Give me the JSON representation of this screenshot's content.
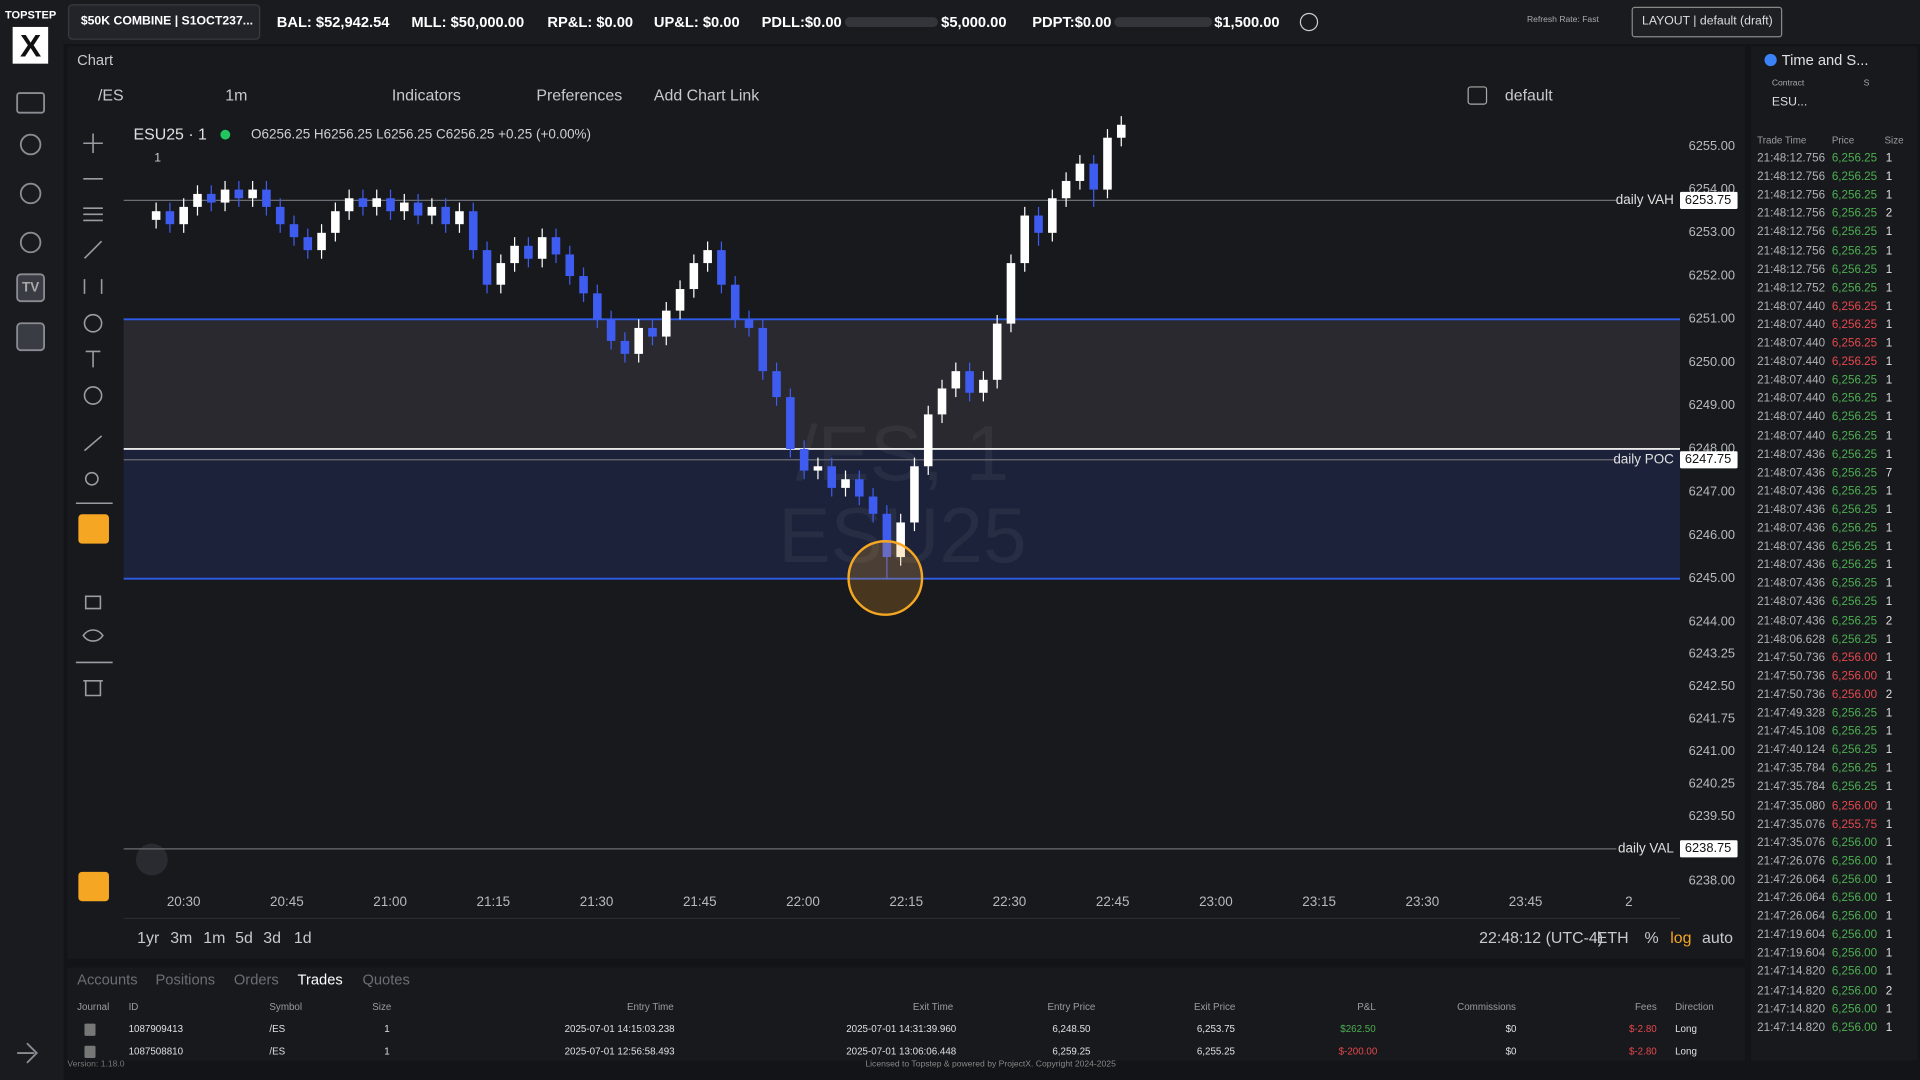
{
  "brand": "TOPSTEP",
  "logo": "X",
  "sidebar_badge": "TV",
  "topbar": {
    "account": "$50K COMBINE | S1OCT237...",
    "bal": "BAL: $52,942.54",
    "mll": "MLL: $50,000.00",
    "rpl": "RP&L: $0.00",
    "upl": "UP&L: $0.00",
    "pdll": "PDLL:$0.00",
    "pdll_limit": "$5,000.00",
    "pdpt": "PDPT:$0.00",
    "pdpt_limit": "$1,500.00",
    "refresh": "Refresh Rate: Fast",
    "layout": "LAYOUT | default (draft)"
  },
  "chart_tab": "Chart",
  "toolbar": {
    "symbol": "/ES",
    "interval": "1m",
    "indicators": "Indicators",
    "preferences": "Preferences",
    "add_link": "Add Chart Link",
    "template": "default"
  },
  "legend": {
    "name": "ESU25 · 1",
    "ohlc": "O6256.25 H6256.25 L6256.25 C6256.25 +0.25 (+0.00%)",
    "collapse": "1"
  },
  "watermark": [
    "/ES, 1",
    "ESU25"
  ],
  "chart": {
    "type": "candlestick",
    "up_color": "#ffffff",
    "down_color": "#3f5cf0",
    "ylim": [
      6237.85,
      6255.78
    ],
    "yticks": [
      {
        "value": 6255,
        "label": "6255.00"
      },
      {
        "value": 6254,
        "label": "6254.00"
      },
      {
        "value": 6253,
        "label": "6253.00"
      },
      {
        "value": 6252,
        "label": "6252.00"
      },
      {
        "value": 6251,
        "label": "6251.00"
      },
      {
        "value": 6250,
        "label": "6250.00"
      },
      {
        "value": 6249,
        "label": "6249.00"
      },
      {
        "value": 6248,
        "label": "6248.00"
      },
      {
        "value": 6247,
        "label": "6247.00"
      },
      {
        "value": 6246,
        "label": "6246.00"
      },
      {
        "value": 6245,
        "label": "6245.00"
      },
      {
        "value": 6244,
        "label": "6244.00"
      },
      {
        "value": 6243.25,
        "label": "6243.25"
      },
      {
        "value": 6242.5,
        "label": "6242.50"
      },
      {
        "value": 6241.75,
        "label": "6241.75"
      },
      {
        "value": 6241,
        "label": "6241.00"
      },
      {
        "value": 6240.25,
        "label": "6240.25"
      },
      {
        "value": 6239.5,
        "label": "6239.50"
      },
      {
        "value": 6238,
        "label": "6238.00"
      }
    ],
    "xticks": [
      "20:30",
      "20:45",
      "21:00",
      "21:15",
      "21:30",
      "21:45",
      "22:00",
      "22:15",
      "22:30",
      "22:45",
      "23:00",
      "23:15",
      "23:30",
      "23:45",
      "2"
    ],
    "zones": [
      {
        "from": 6251,
        "to": 6248,
        "color": "rgba(130,130,140,0.16)"
      },
      {
        "from": 6248,
        "to": 6245,
        "color": "rgba(45,70,160,0.22)"
      }
    ],
    "lines": [
      {
        "value": 6251,
        "color": "#2f5bea"
      },
      {
        "value": 6248,
        "color": "#e8e8e8"
      },
      {
        "value": 6245,
        "color": "#2f5bea"
      }
    ],
    "levels": [
      {
        "name": "daily VAH",
        "value": 6253.75,
        "label": "6253.75"
      },
      {
        "name": "daily POC",
        "value": 6247.75,
        "label": "6247.75"
      },
      {
        "name": "daily VAL",
        "value": 6238.75,
        "label": "6238.75"
      }
    ],
    "candles": [
      [
        6253.3,
        6253.7,
        6253.1,
        6253.5
      ],
      [
        6253.5,
        6253.7,
        6253.0,
        6253.2
      ],
      [
        6253.2,
        6253.8,
        6253.0,
        6253.6
      ],
      [
        6253.6,
        6254.1,
        6253.4,
        6253.9
      ],
      [
        6253.9,
        6254.1,
        6253.5,
        6253.7
      ],
      [
        6253.7,
        6254.2,
        6253.5,
        6254.0
      ],
      [
        6254.0,
        6254.2,
        6253.6,
        6253.8
      ],
      [
        6253.8,
        6254.2,
        6253.6,
        6254.0
      ],
      [
        6254.0,
        6254.2,
        6253.4,
        6253.6
      ],
      [
        6253.6,
        6253.8,
        6253.0,
        6253.2
      ],
      [
        6253.2,
        6253.4,
        6252.7,
        6252.9
      ],
      [
        6252.9,
        6253.1,
        6252.4,
        6252.6
      ],
      [
        6252.6,
        6253.2,
        6252.4,
        6253.0
      ],
      [
        6253.0,
        6253.7,
        6252.8,
        6253.5
      ],
      [
        6253.5,
        6254.0,
        6253.3,
        6253.8
      ],
      [
        6253.8,
        6254.0,
        6253.4,
        6253.6
      ],
      [
        6253.6,
        6254.0,
        6253.4,
        6253.8
      ],
      [
        6253.8,
        6254.0,
        6253.3,
        6253.5
      ],
      [
        6253.5,
        6253.9,
        6253.3,
        6253.7
      ],
      [
        6253.7,
        6253.9,
        6253.2,
        6253.4
      ],
      [
        6253.4,
        6253.8,
        6253.2,
        6253.6
      ],
      [
        6253.6,
        6253.8,
        6253.0,
        6253.2
      ],
      [
        6253.2,
        6253.7,
        6253.0,
        6253.5
      ],
      [
        6253.5,
        6253.7,
        6252.4,
        6252.6
      ],
      [
        6252.6,
        6252.8,
        6251.6,
        6251.8
      ],
      [
        6251.8,
        6252.5,
        6251.6,
        6252.3
      ],
      [
        6252.3,
        6252.9,
        6252.1,
        6252.7
      ],
      [
        6252.7,
        6252.9,
        6252.2,
        6252.4
      ],
      [
        6252.4,
        6253.1,
        6252.2,
        6252.9
      ],
      [
        6252.9,
        6253.1,
        6252.3,
        6252.5
      ],
      [
        6252.5,
        6252.7,
        6251.8,
        6252.0
      ],
      [
        6252.0,
        6252.2,
        6251.4,
        6251.6
      ],
      [
        6251.6,
        6251.8,
        6250.8,
        6251.0
      ],
      [
        6251.0,
        6251.2,
        6250.3,
        6250.5
      ],
      [
        6250.5,
        6250.7,
        6250.0,
        6250.2
      ],
      [
        6250.2,
        6251.0,
        6250.0,
        6250.8
      ],
      [
        6250.8,
        6251.0,
        6250.4,
        6250.6
      ],
      [
        6250.6,
        6251.4,
        6250.4,
        6251.2
      ],
      [
        6251.2,
        6251.9,
        6251.0,
        6251.7
      ],
      [
        6251.7,
        6252.5,
        6251.5,
        6252.3
      ],
      [
        6252.3,
        6252.8,
        6252.1,
        6252.6
      ],
      [
        6252.6,
        6252.8,
        6251.6,
        6251.8
      ],
      [
        6251.8,
        6252.0,
        6250.8,
        6251.0
      ],
      [
        6251.0,
        6251.2,
        6250.6,
        6250.8
      ],
      [
        6250.8,
        6251.0,
        6249.6,
        6249.8
      ],
      [
        6249.8,
        6250.0,
        6249.0,
        6249.2
      ],
      [
        6249.2,
        6249.4,
        6247.8,
        6248.0
      ],
      [
        6248.0,
        6248.2,
        6247.3,
        6247.5
      ],
      [
        6247.5,
        6247.8,
        6247.3,
        6247.6
      ],
      [
        6247.6,
        6247.8,
        6246.9,
        6247.1
      ],
      [
        6247.1,
        6247.5,
        6246.9,
        6247.3
      ],
      [
        6247.3,
        6247.5,
        6246.7,
        6246.9
      ],
      [
        6246.9,
        6247.1,
        6246.3,
        6246.5
      ],
      [
        6246.5,
        6246.7,
        6245.0,
        6245.5
      ],
      [
        6245.5,
        6246.5,
        6245.3,
        6246.3
      ],
      [
        6246.3,
        6247.8,
        6246.1,
        6247.6
      ],
      [
        6247.6,
        6249.0,
        6247.4,
        6248.8
      ],
      [
        6248.8,
        6249.6,
        6248.6,
        6249.4
      ],
      [
        6249.4,
        6250.0,
        6249.2,
        6249.8
      ],
      [
        6249.8,
        6250.0,
        6249.1,
        6249.3
      ],
      [
        6249.3,
        6249.8,
        6249.1,
        6249.6
      ],
      [
        6249.6,
        6251.1,
        6249.4,
        6250.9
      ],
      [
        6250.9,
        6252.5,
        6250.7,
        6252.3
      ],
      [
        6252.3,
        6253.6,
        6252.1,
        6253.4
      ],
      [
        6253.4,
        6253.6,
        6252.7,
        6253.0
      ],
      [
        6253.0,
        6254.0,
        6252.8,
        6253.8
      ],
      [
        6253.8,
        6254.4,
        6253.6,
        6254.2
      ],
      [
        6254.2,
        6254.8,
        6254.0,
        6254.6
      ],
      [
        6254.6,
        6254.8,
        6253.6,
        6254.0
      ],
      [
        6254.0,
        6255.4,
        6253.8,
        6255.2
      ],
      [
        6255.2,
        6255.7,
        6255.0,
        6255.5
      ]
    ]
  },
  "bottom_bar": {
    "ranges": [
      "1yr",
      "3m",
      "1m",
      "5d",
      "3d",
      "1d"
    ],
    "clock": "22:48:12 (UTC-4)",
    "session": "ETH",
    "percent": "%",
    "log": "log",
    "auto": "auto"
  },
  "panel": {
    "tabs": [
      "Accounts",
      "Positions",
      "Orders",
      "Trades",
      "Quotes"
    ],
    "active": 3,
    "columns": [
      "Journal",
      "ID",
      "Symbol",
      "Size",
      "Entry Time",
      "Exit Time",
      "Entry Price",
      "Exit Price",
      "P&L",
      "Commissions",
      "Fees",
      "Direction"
    ],
    "rows": [
      [
        "1087909413",
        "/ES",
        "1",
        "2025-07-01 14:15:03.238",
        "2025-07-01 14:31:39.960",
        "6,248.50",
        "6,253.75",
        "$262.50",
        "$0",
        "$-2.80",
        "Long"
      ],
      [
        "1087508810",
        "/ES",
        "1",
        "2025-07-01 12:56:58.493",
        "2025-07-01 13:06:06.448",
        "6,259.25",
        "6,255.25",
        "$-200.00",
        "$0",
        "$-2.80",
        "Long"
      ]
    ],
    "pl_colors": [
      "#4caf50",
      "#e5484d"
    ]
  },
  "footer": {
    "version": "Version: 1.18.0",
    "license": "Licensed to Topstep & powered by ProjectX. Copyright 2024-2025"
  },
  "tas": {
    "title": "Time and S...",
    "contract_label": "Contract",
    "contract": "ESU...",
    "s_label": "S",
    "columns": [
      "Trade Time",
      "Price",
      "Size"
    ],
    "rows": [
      {
        "time": "21:48:12.756",
        "price": "6,256.25",
        "size": 1,
        "color": "#4caf50"
      },
      {
        "time": "21:48:12.756",
        "price": "6,256.25",
        "size": 1,
        "color": "#4caf50"
      },
      {
        "time": "21:48:12.756",
        "price": "6,256.25",
        "size": 1,
        "color": "#4caf50"
      },
      {
        "time": "21:48:12.756",
        "price": "6,256.25",
        "size": 2,
        "color": "#4caf50"
      },
      {
        "time": "21:48:12.756",
        "price": "6,256.25",
        "size": 1,
        "color": "#4caf50"
      },
      {
        "time": "21:48:12.756",
        "price": "6,256.25",
        "size": 1,
        "color": "#4caf50"
      },
      {
        "time": "21:48:12.756",
        "price": "6,256.25",
        "size": 1,
        "color": "#4caf50"
      },
      {
        "time": "21:48:12.752",
        "price": "6,256.25",
        "size": 1,
        "color": "#4caf50"
      },
      {
        "time": "21:48:07.440",
        "price": "6,256.25",
        "size": 1,
        "color": "#e5484d"
      },
      {
        "time": "21:48:07.440",
        "price": "6,256.25",
        "size": 1,
        "color": "#e5484d"
      },
      {
        "time": "21:48:07.440",
        "price": "6,256.25",
        "size": 1,
        "color": "#e5484d"
      },
      {
        "time": "21:48:07.440",
        "price": "6,256.25",
        "size": 1,
        "color": "#e5484d"
      },
      {
        "time": "21:48:07.440",
        "price": "6,256.25",
        "size": 1,
        "color": "#4caf50"
      },
      {
        "time": "21:48:07.440",
        "price": "6,256.25",
        "size": 1,
        "color": "#4caf50"
      },
      {
        "time": "21:48:07.440",
        "price": "6,256.25",
        "size": 1,
        "color": "#4caf50"
      },
      {
        "time": "21:48:07.440",
        "price": "6,256.25",
        "size": 1,
        "color": "#4caf50"
      },
      {
        "time": "21:48:07.436",
        "price": "6,256.25",
        "size": 1,
        "color": "#4caf50"
      },
      {
        "time": "21:48:07.436",
        "price": "6,256.25",
        "size": 7,
        "color": "#4caf50"
      },
      {
        "time": "21:48:07.436",
        "price": "6,256.25",
        "size": 1,
        "color": "#4caf50"
      },
      {
        "time": "21:48:07.436",
        "price": "6,256.25",
        "size": 1,
        "color": "#4caf50"
      },
      {
        "time": "21:48:07.436",
        "price": "6,256.25",
        "size": 1,
        "color": "#4caf50"
      },
      {
        "time": "21:48:07.436",
        "price": "6,256.25",
        "size": 1,
        "color": "#4caf50"
      },
      {
        "time": "21:48:07.436",
        "price": "6,256.25",
        "size": 1,
        "color": "#4caf50"
      },
      {
        "time": "21:48:07.436",
        "price": "6,256.25",
        "size": 1,
        "color": "#4caf50"
      },
      {
        "time": "21:48:07.436",
        "price": "6,256.25",
        "size": 1,
        "color": "#4caf50"
      },
      {
        "time": "21:48:07.436",
        "price": "6,256.25",
        "size": 2,
        "color": "#4caf50"
      },
      {
        "time": "21:48:06.628",
        "price": "6,256.25",
        "size": 1,
        "color": "#4caf50"
      },
      {
        "time": "21:47:50.736",
        "price": "6,256.00",
        "size": 1,
        "color": "#e5484d"
      },
      {
        "time": "21:47:50.736",
        "price": "6,256.00",
        "size": 1,
        "color": "#e5484d"
      },
      {
        "time": "21:47:50.736",
        "price": "6,256.00",
        "size": 2,
        "color": "#e5484d"
      },
      {
        "time": "21:47:49.328",
        "price": "6,256.25",
        "size": 1,
        "color": "#4caf50"
      },
      {
        "time": "21:47:45.108",
        "price": "6,256.25",
        "size": 1,
        "color": "#4caf50"
      },
      {
        "time": "21:47:40.124",
        "price": "6,256.25",
        "size": 1,
        "color": "#4caf50"
      },
      {
        "time": "21:47:35.784",
        "price": "6,256.25",
        "size": 1,
        "color": "#4caf50"
      },
      {
        "time": "21:47:35.784",
        "price": "6,256.25",
        "size": 1,
        "color": "#4caf50"
      },
      {
        "time": "21:47:35.080",
        "price": "6,256.00",
        "size": 1,
        "color": "#e5484d"
      },
      {
        "time": "21:47:35.076",
        "price": "6,255.75",
        "size": 1,
        "color": "#e5484d"
      },
      {
        "time": "21:47:35.076",
        "price": "6,256.00",
        "size": 1,
        "color": "#4caf50"
      },
      {
        "time": "21:47:26.076",
        "price": "6,256.00",
        "size": 1,
        "color": "#4caf50"
      },
      {
        "time": "21:47:26.064",
        "price": "6,256.00",
        "size": 1,
        "color": "#4caf50"
      },
      {
        "time": "21:47:26.064",
        "price": "6,256.00",
        "size": 1,
        "color": "#4caf50"
      },
      {
        "time": "21:47:26.064",
        "price": "6,256.00",
        "size": 1,
        "color": "#4caf50"
      },
      {
        "time": "21:47:19.604",
        "price": "6,256.00",
        "size": 1,
        "color": "#4caf50"
      },
      {
        "time": "21:47:19.604",
        "price": "6,256.00",
        "size": 1,
        "color": "#4caf50"
      },
      {
        "time": "21:47:14.820",
        "price": "6,256.00",
        "size": 1,
        "color": "#4caf50"
      },
      {
        "time": "21:47:14.820",
        "price": "6,256.00",
        "size": 2,
        "color": "#4caf50"
      },
      {
        "time": "21:47:14.820",
        "price": "6,256.00",
        "size": 1,
        "color": "#4caf50"
      },
      {
        "time": "21:47:14.820",
        "price": "6,256.00",
        "size": 1,
        "color": "#4caf50"
      }
    ]
  }
}
